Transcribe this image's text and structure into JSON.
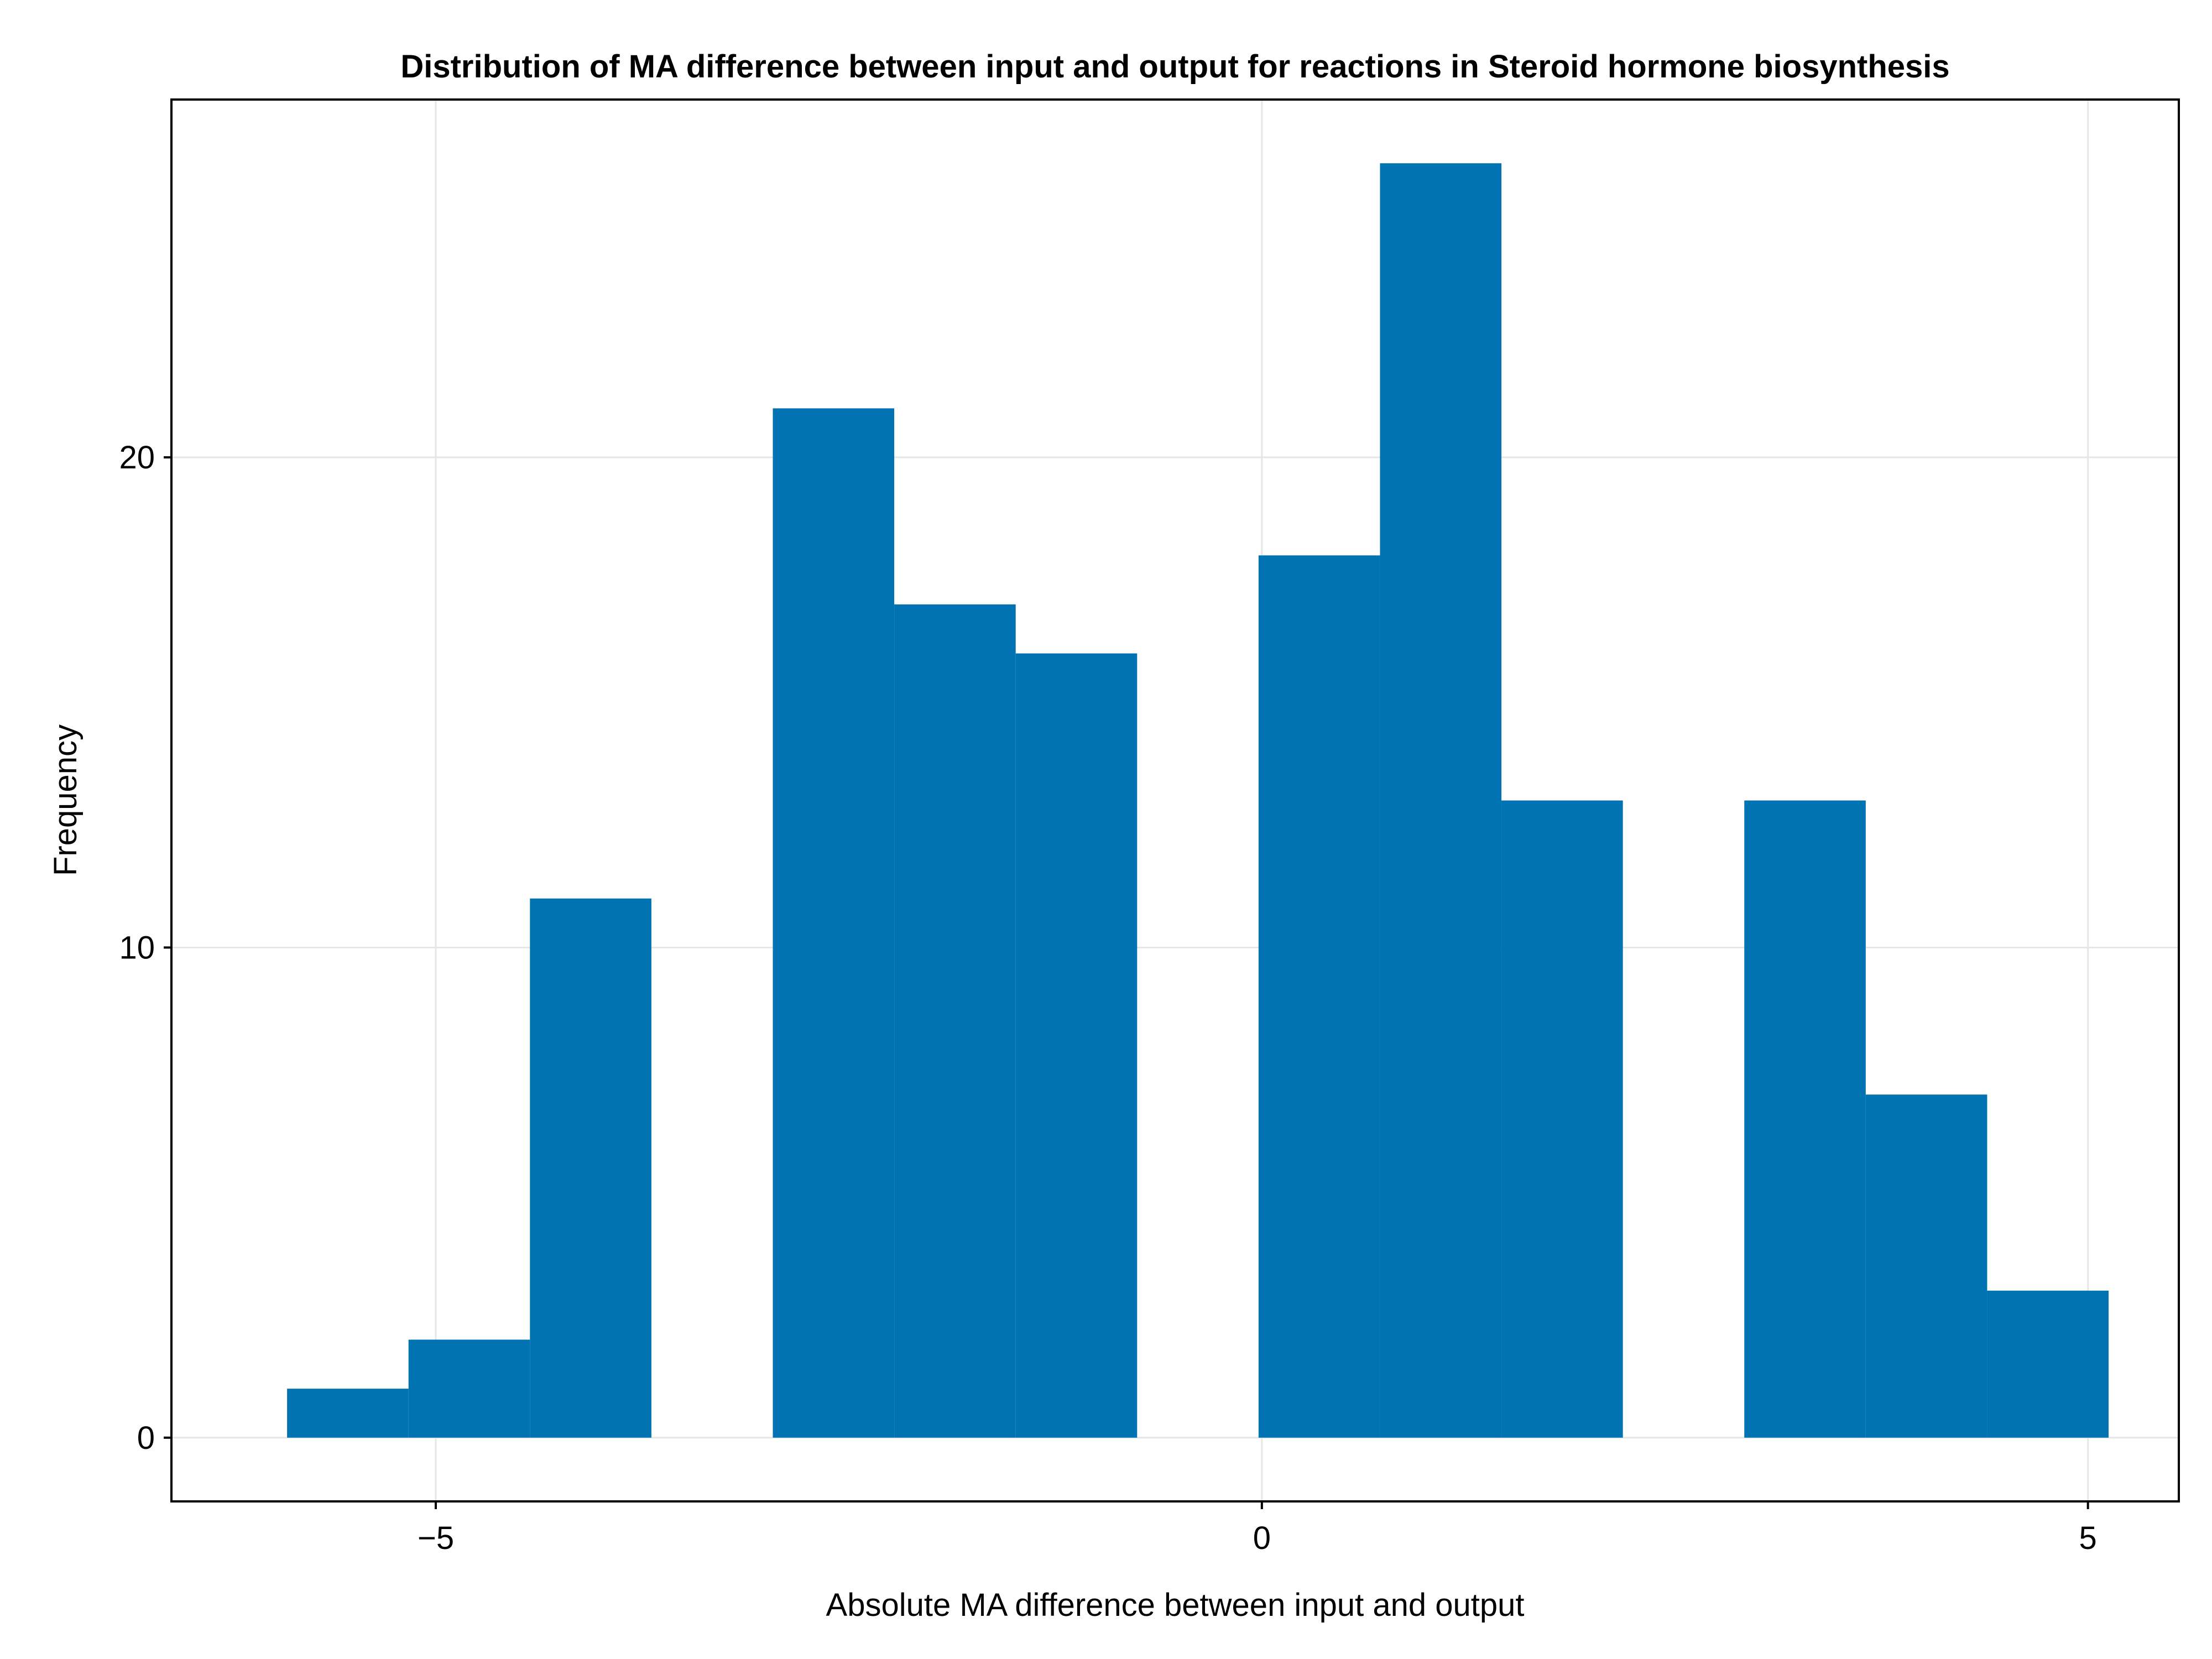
{
  "chart_data": {
    "type": "bar",
    "title": "Distribution of MA difference between input and output for reactions in Steroid hormone biosynthesis",
    "xlabel": "Absolute MA difference between input and output",
    "ylabel": "Frequency",
    "xlim": [
      -6.6,
      5.55
    ],
    "ylim": [
      -1.3,
      27.3
    ],
    "x_ticks": [
      -5,
      0,
      5
    ],
    "x_tick_labels": [
      "−5",
      "0",
      "5"
    ],
    "y_ticks": [
      0,
      10,
      20
    ],
    "y_tick_labels": [
      "0",
      "10",
      "20"
    ],
    "grid": true,
    "bar_color": "#0173b2",
    "bins": [
      {
        "x0": -5.9,
        "x1": -5.165,
        "count": 1
      },
      {
        "x0": -5.165,
        "x1": -4.43,
        "count": 2
      },
      {
        "x0": -4.43,
        "x1": -3.695,
        "count": 11
      },
      {
        "x0": -3.695,
        "x1": -2.96,
        "count": 0
      },
      {
        "x0": -2.96,
        "x1": -2.225,
        "count": 21
      },
      {
        "x0": -2.225,
        "x1": -1.49,
        "count": 17
      },
      {
        "x0": -1.49,
        "x1": -0.755,
        "count": 16
      },
      {
        "x0": -0.755,
        "x1": -0.02,
        "count": 0
      },
      {
        "x0": -0.02,
        "x1": 0.715,
        "count": 18
      },
      {
        "x0": 0.715,
        "x1": 1.45,
        "count": 26
      },
      {
        "x0": 1.45,
        "x1": 2.185,
        "count": 13
      },
      {
        "x0": 2.185,
        "x1": 2.92,
        "count": 0
      },
      {
        "x0": 2.92,
        "x1": 3.655,
        "count": 13
      },
      {
        "x0": 3.655,
        "x1": 4.39,
        "count": 7
      },
      {
        "x0": 4.39,
        "x1": 5.125,
        "count": 3
      }
    ]
  }
}
